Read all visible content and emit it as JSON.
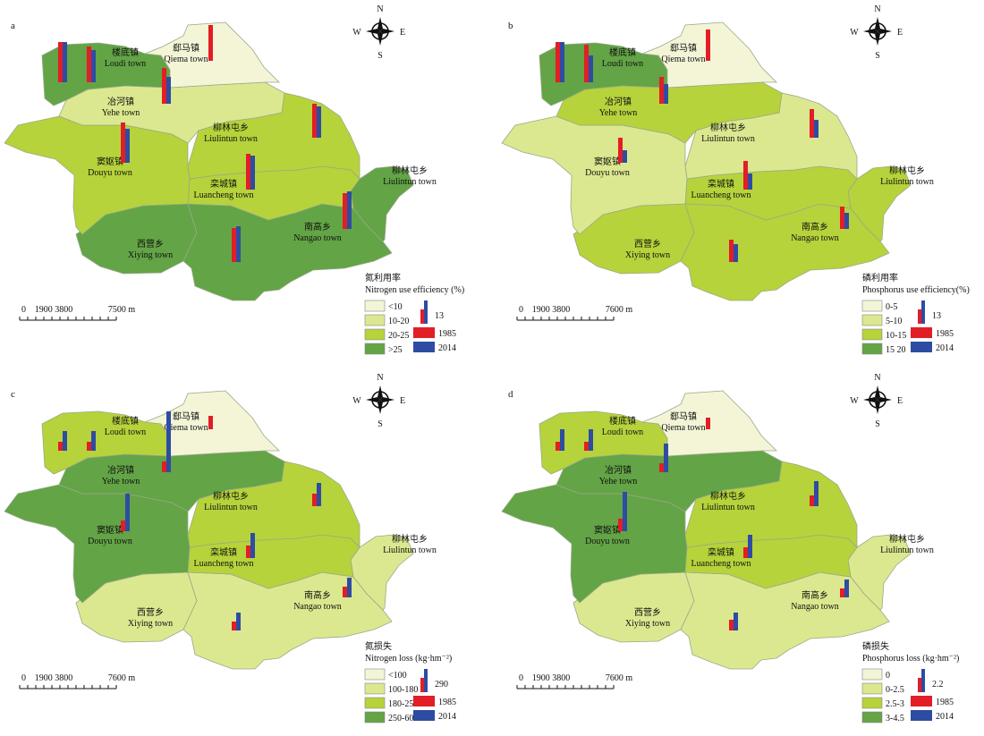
{
  "colors": {
    "c1": "#f3f5d6",
    "c2": "#dbe88f",
    "c3": "#b6d33b",
    "c4": "#63a446",
    "bar1985": "#e21e26",
    "bar2014": "#2f4ca3",
    "border": "#9aa88a"
  },
  "compass": {
    "N": "N",
    "S": "S",
    "E": "E",
    "W": "W"
  },
  "towns": {
    "loudi": {
      "zh": "楼底镇",
      "en": "Loudi town"
    },
    "qiema": {
      "zh": "郄马镇",
      "en": "Qiema town"
    },
    "yehe": {
      "zh": "冶河镇",
      "en": "Yehe town"
    },
    "liulintun": {
      "zh": "柳林屯乡",
      "en": "Liulintun town"
    },
    "douyu": {
      "zh": "窦妪镇",
      "en": "Douyu town"
    },
    "luancheng": {
      "zh": "栾城镇",
      "en": "Luancheng town"
    },
    "east": {
      "zh": "柳林屯乡",
      "en": "Liulintun town"
    },
    "nangao": {
      "zh": "南高乡",
      "en": "Nangao town"
    },
    "xiying": {
      "zh": "西营乡",
      "en": "Xiying town"
    }
  },
  "panels": [
    {
      "letter": "a",
      "legend_title_zh": "氮利用率",
      "legend_title_en": "Nitrogen use efficiency (%)",
      "classes": [
        "<10",
        "10-20",
        "20-25",
        ">25"
      ],
      "ref_value": "13",
      "year1": "1985",
      "year2": "2014",
      "scale": [
        "0",
        "1900 3800",
        "7500 m"
      ],
      "fills": {
        "loudi": "c4",
        "qiema": "c1",
        "yehe": "c2",
        "liulintun": "c3",
        "douyu": "c3",
        "luancheng": "c3",
        "east": "c4",
        "nangao": "c4",
        "xiying": "c4"
      },
      "bars": {
        "loudi": [
          45,
          45
        ],
        "loudi2": [
          40,
          36
        ],
        "qiema": [
          40,
          0
        ],
        "yehe": [
          40,
          30
        ],
        "liulintun": [
          38,
          35
        ],
        "douyu": [
          45,
          38
        ],
        "luancheng": [
          40,
          38
        ],
        "east": [
          40,
          42
        ],
        "nangao": [
          38,
          40
        ],
        "xiying": [
          36,
          38
        ]
      }
    },
    {
      "letter": "b",
      "legend_title_zh": "磷利用率",
      "legend_title_en": "Phosphorus use efficiency(%)",
      "classes": [
        "0-5",
        "5-10",
        "10-15",
        "15 20"
      ],
      "ref_value": "13",
      "year1": "1985",
      "year2": "2014",
      "scale": [
        "0",
        "1900 3800",
        "7600 m"
      ],
      "fills": {
        "loudi": "c4",
        "qiema": "c1",
        "yehe": "c3",
        "liulintun": "c2",
        "douyu": "c2",
        "luancheng": "c3",
        "east": "c3",
        "nangao": "c3",
        "xiying": "c3"
      },
      "bars": {
        "loudi": [
          45,
          45
        ],
        "loudi2": [
          42,
          30
        ],
        "qiema": [
          35,
          0
        ],
        "yehe": [
          30,
          22
        ],
        "liulintun": [
          32,
          20
        ],
        "douyu": [
          28,
          14
        ],
        "luancheng": [
          32,
          18
        ],
        "east": [
          25,
          18
        ],
        "nangao": [
          25,
          20
        ],
        "xiying": [
          25,
          17
        ]
      }
    },
    {
      "letter": "c",
      "legend_title_zh": "氮损失",
      "legend_title_en": "Nitrogen loss (kg·hm⁻²)",
      "classes": [
        "<100",
        "100-180",
        "180-250",
        "250-600"
      ],
      "ref_value": "290",
      "year1": "1985",
      "year2": "2014",
      "scale": [
        "0",
        "1900 3800",
        "7600 m"
      ],
      "fills": {
        "loudi": "c3",
        "qiema": "c1",
        "yehe": "c4",
        "liulintun": "c3",
        "douyu": "c4",
        "luancheng": "c3",
        "east": "c2",
        "nangao": "c2",
        "xiying": "c2"
      },
      "bars": {
        "loudi": [
          10,
          22
        ],
        "loudi2": [
          10,
          22
        ],
        "qiema": [
          15,
          0
        ],
        "yehe": [
          12,
          68
        ],
        "liulintun": [
          14,
          26
        ],
        "douyu": [
          12,
          42
        ],
        "luancheng": [
          14,
          28
        ],
        "east": [
          12,
          22
        ],
        "nangao": [
          10,
          20
        ],
        "xiying": [
          12,
          15
        ]
      }
    },
    {
      "letter": "d",
      "legend_title_zh": "磷损失",
      "legend_title_en": "Phosphorus loss (kg·hm⁻²)",
      "classes": [
        "0",
        "0-2.5",
        "2.5-3",
        "3-4.5"
      ],
      "ref_value": "2.2",
      "year1": "1985",
      "year2": "2014",
      "scale": [
        "0",
        "1900 3800",
        "7600 m"
      ],
      "fills": {
        "loudi": "c3",
        "qiema": "c1",
        "yehe": "c4",
        "liulintun": "c3",
        "douyu": "c4",
        "luancheng": "c3",
        "east": "c2",
        "nangao": "c2",
        "xiying": "c2"
      },
      "bars": {
        "loudi": [
          10,
          24
        ],
        "loudi2": [
          10,
          24
        ],
        "qiema": [
          13,
          0
        ],
        "yehe": [
          10,
          32
        ],
        "liulintun": [
          12,
          28
        ],
        "douyu": [
          14,
          44
        ],
        "luancheng": [
          12,
          26
        ],
        "east": [
          10,
          20
        ],
        "nangao": [
          12,
          20
        ],
        "xiying": [
          10,
          18
        ]
      }
    }
  ]
}
